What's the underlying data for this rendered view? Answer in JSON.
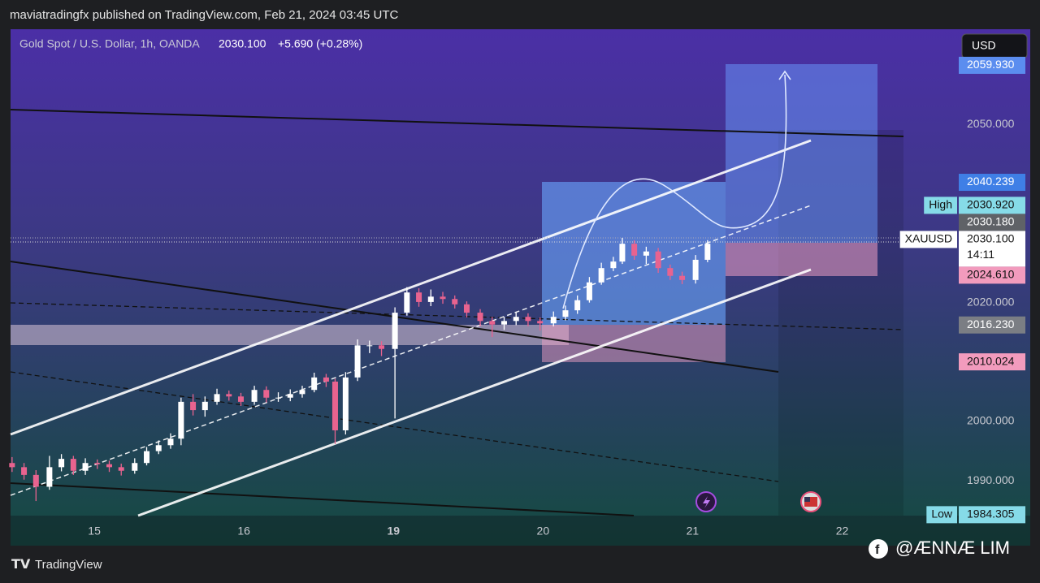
{
  "header": "maviatradingfx published on TradingView.com, Feb 21, 2024 03:45 UTC",
  "footer": {
    "brand": "TradingView",
    "watermark": "@ÆNNÆ LIM"
  },
  "chart_data": {
    "type": "candlestick",
    "title": "Gold Spot / U.S. Dollar, 1h, OANDA",
    "last_price": "2030.100",
    "change": "+5.690 (+0.28%)",
    "currency": "USD",
    "up_color": "#ffffff",
    "down_color": "#e8638f",
    "x": [
      14.45,
      14.53,
      14.61,
      14.7,
      14.78,
      14.86,
      14.94,
      15.02,
      15.1,
      15.18,
      15.27,
      15.35,
      15.43,
      15.51,
      15.58,
      15.66,
      15.74,
      15.82,
      15.9,
      15.98,
      16.07,
      16.15,
      16.23,
      16.31,
      16.39,
      16.47,
      16.55,
      16.61,
      16.68,
      16.76,
      16.84,
      16.92,
      17.01,
      17.09,
      17.17,
      17.25,
      17.33,
      17.41,
      17.49,
      17.58,
      17.66,
      17.74,
      17.82,
      17.9,
      17.98,
      18.07,
      18.15,
      18.23,
      18.31,
      18.39,
      18.47,
      18.53,
      18.61,
      18.69,
      18.77,
      18.85,
      18.93,
      19.02,
      19.1
    ],
    "open": [
      1993.0,
      1992.3,
      1991.0,
      1989.0,
      1992.3,
      1993.7,
      1991.7,
      1993.0,
      1992.8,
      1992.3,
      1991.7,
      1993.0,
      1995.0,
      1996.0,
      1997.1,
      2003.3,
      2001.9,
      2003.3,
      2004.6,
      2004.2,
      2003.3,
      2005.3,
      2004.0,
      2004.0,
      2004.6,
      2005.3,
      2007.4,
      2006.7,
      1998.5,
      2007.4,
      2012.8,
      2012.8,
      2012.2,
      2018.3,
      2021.7,
      2020.1,
      2021.0,
      2020.6,
      2019.7,
      2018.3,
      2016.9,
      2016.3,
      2016.9,
      2017.6,
      2016.9,
      2016.5,
      2017.6,
      2018.7,
      2020.4,
      2023.4,
      2025.8,
      2026.9,
      2029.9,
      2027.9,
      2028.6,
      2025.8,
      2024.5,
      2023.8,
      2027.2
    ],
    "high": [
      1994.0,
      1993.0,
      1991.8,
      1994.2,
      1994.5,
      1994.2,
      1993.8,
      1993.6,
      1993.4,
      1992.9,
      1993.8,
      1995.7,
      1996.8,
      1998.0,
      2004.0,
      2004.6,
      2004.2,
      2005.5,
      2005.2,
      2004.8,
      2006.0,
      2005.9,
      2004.9,
      2005.4,
      2006.0,
      2008.2,
      2008.0,
      2007.2,
      2008.3,
      2013.8,
      2013.6,
      2013.5,
      2019.2,
      2022.6,
      2022.4,
      2022.2,
      2021.8,
      2021.2,
      2020.2,
      2018.9,
      2017.6,
      2017.6,
      2018.4,
      2018.2,
      2017.5,
      2018.5,
      2019.5,
      2021.2,
      2024.3,
      2026.7,
      2027.7,
      2030.9,
      2030.5,
      2029.4,
      2029.2,
      2026.4,
      2025.2,
      2028.0,
      2030.5
    ],
    "low": [
      1991.5,
      1990.2,
      1986.6,
      1988.5,
      1991.6,
      1991.0,
      1991.0,
      1992.0,
      1991.5,
      1990.9,
      1991.2,
      1992.6,
      1994.5,
      1995.4,
      1996.0,
      2001.0,
      2000.8,
      2002.8,
      2003.5,
      2002.6,
      2002.8,
      2003.2,
      2003.3,
      2003.4,
      2004.0,
      2004.9,
      2005.8,
      1996.2,
      1997.8,
      2006.8,
      2011.5,
      2011.0,
      2000.5,
      2017.8,
      2019.3,
      2019.4,
      2019.8,
      2019.0,
      2017.5,
      2016.0,
      2014.2,
      2015.4,
      2016.2,
      2016.0,
      2015.3,
      2016.0,
      2017.0,
      2018.1,
      2020.0,
      2023.0,
      2025.3,
      2026.5,
      2027.2,
      2026.5,
      2025.0,
      2023.8,
      2023.1,
      2023.2,
      2026.8
    ],
    "close": [
      1992.3,
      1991.0,
      1989.0,
      1992.3,
      1993.7,
      1991.7,
      1993.0,
      1992.8,
      1992.3,
      1991.7,
      1993.0,
      1995.0,
      1996.0,
      1997.1,
      2003.3,
      2001.9,
      2003.3,
      2004.6,
      2004.2,
      2003.3,
      2005.3,
      2004.0,
      2004.0,
      2004.6,
      2005.3,
      2007.4,
      2006.7,
      1998.5,
      2007.4,
      2012.8,
      2012.8,
      2012.2,
      2018.3,
      2021.7,
      2020.1,
      2021.0,
      2020.6,
      2019.7,
      2018.3,
      2016.9,
      2016.3,
      2016.9,
      2017.6,
      2016.9,
      2016.5,
      2017.6,
      2018.7,
      2020.4,
      2023.4,
      2025.8,
      2026.9,
      2029.9,
      2027.9,
      2028.6,
      2025.8,
      2024.5,
      2023.8,
      2027.2,
      2029.9
    ],
    "xlim": [
      14.44,
      20.41
    ],
    "xticks": [
      15,
      16,
      {
        "value": 17,
        "label": "19"
      },
      {
        "value": 18,
        "label": "20"
      },
      {
        "value": 19,
        "label": "21"
      },
      {
        "value": 20,
        "label": "22"
      }
    ],
    "ylim": [
      1984.15,
      2066
    ],
    "yticks": [
      {
        "value": 2050,
        "label": "2050.000"
      },
      {
        "value": 2020,
        "label": "2020.000"
      },
      {
        "value": 2000,
        "label": "2000.000"
      },
      {
        "value": 1990,
        "label": "1990.000"
      }
    ],
    "price_tags": [
      {
        "value": 2059.93,
        "label": "2059.930",
        "color": "#5b8def",
        "text_color": "#ffffff"
      },
      {
        "value": 2040.239,
        "label": "2040.239",
        "color": "#3f7fe6",
        "text_color": "#ffffff"
      },
      {
        "name": "High",
        "value": 2030.92,
        "label": "2030.920",
        "color": "#86dbe8",
        "text_color": "#111111"
      },
      {
        "value": 2030.18,
        "label": "2030.180",
        "color": "#5f6267",
        "text_color": "#ffffff"
      },
      {
        "name": "XAUUSD",
        "value": 2030.1,
        "label": "2030.100",
        "countdown": "14:11",
        "color": "#ffffff",
        "text_color": "#111111"
      },
      {
        "value": 2024.61,
        "label": "2024.610",
        "color": "#f29bbd",
        "text_color": "#111111"
      },
      {
        "value": 2016.23,
        "label": "2016.230",
        "color": "#7b7e84",
        "text_color": "#ffffff"
      },
      {
        "value": 2010.024,
        "label": "2010.024",
        "color": "#f29bbd",
        "text_color": "#111111"
      },
      {
        "name": "Low",
        "value": 1984.305,
        "label": "1984.305",
        "color": "#86dbe8",
        "text_color": "#111111"
      }
    ]
  }
}
